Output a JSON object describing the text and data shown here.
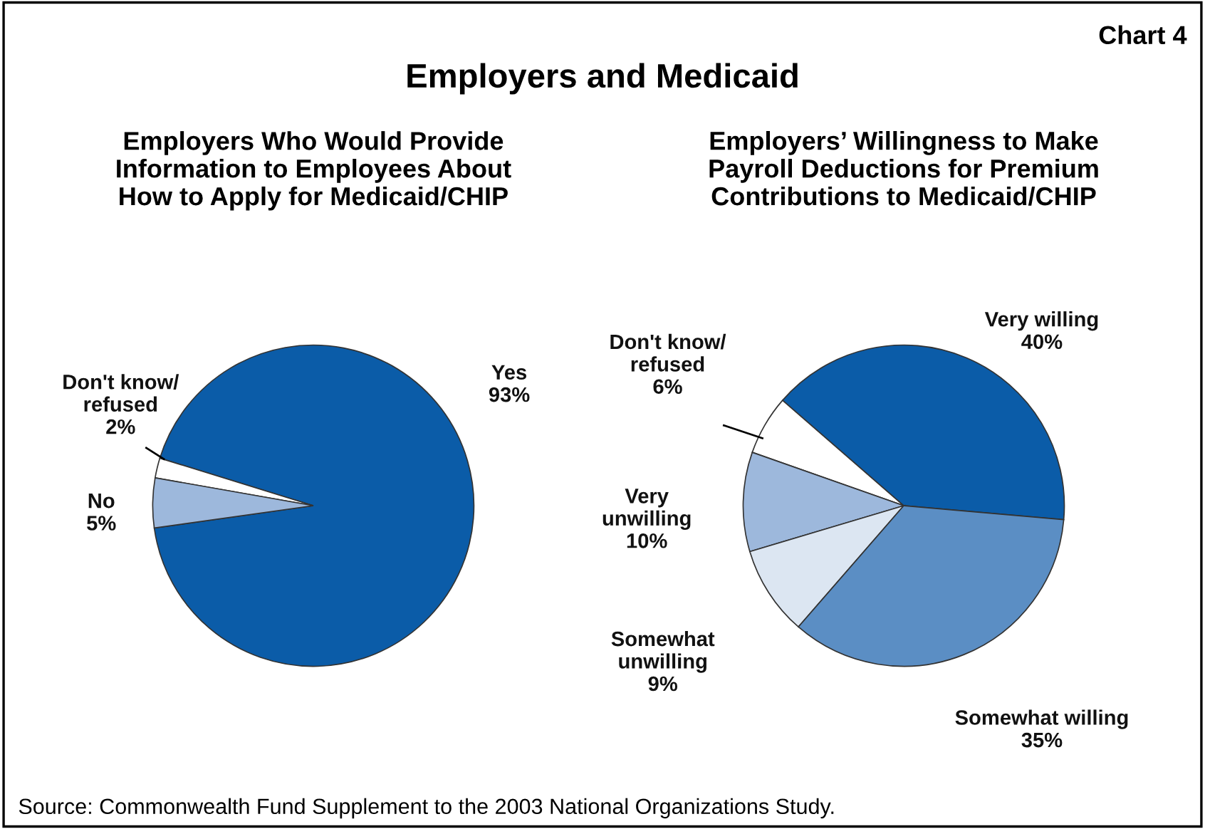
{
  "chart_data": [
    {
      "type": "pie",
      "title": "Employers Who Would Provide\nInformation to Employees About\nHow to Apply for Medicaid/CHIP",
      "categories": [
        "Yes",
        "Don't know/\nrefused",
        "No"
      ],
      "values": [
        93,
        2,
        5
      ],
      "colors": [
        "#0b5ca8",
        "#ffffff",
        "#9db8dc"
      ],
      "value_labels": [
        "93%",
        "2%",
        "5%"
      ],
      "annotations": [
        "Employers and Medicaid",
        "Chart 4",
        "Source: Commonwealth Fund Supplement to the 2003 National Organizations Study."
      ]
    },
    {
      "type": "pie",
      "title": "Employers’ Willingness to Make\nPayroll Deductions for Premium\nContributions to Medicaid/CHIP",
      "categories": [
        "Very willing",
        "Don't know/\nrefused",
        "Very\nunwilling",
        "Somewhat\nunwilling",
        "Somewhat willing"
      ],
      "values": [
        40,
        6,
        10,
        9,
        35
      ],
      "colors": [
        "#0b5ca8",
        "#ffffff",
        "#9db8dc",
        "#dce6f2",
        "#5b8ec4"
      ],
      "value_labels": [
        "40%",
        "6%",
        "10%",
        "9%",
        "35%"
      ]
    }
  ]
}
